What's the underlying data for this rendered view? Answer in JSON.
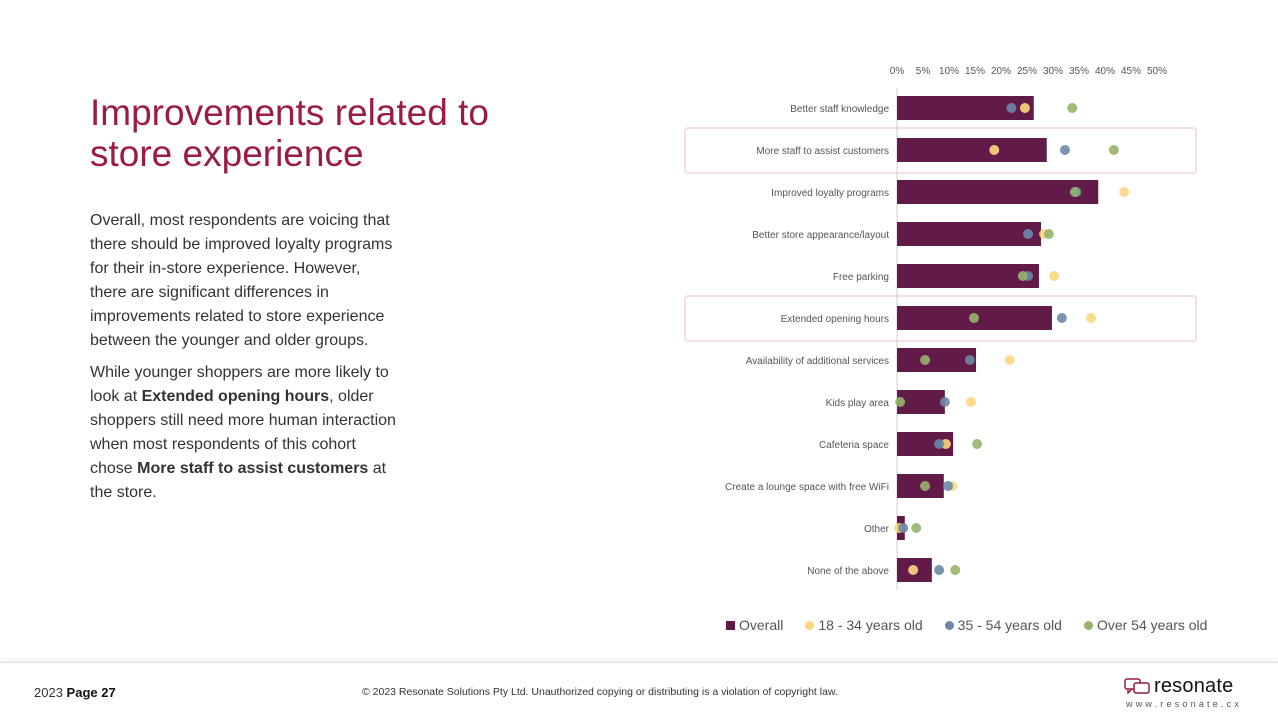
{
  "title": "Improvements related to store experience",
  "paragraph1": "Overall, most respondents are voicing that there should be improved loyalty programs for their in-store experience. However, there are significant differences in improvements related to store experience between the younger and older groups.",
  "paragraph2": {
    "t1": "While younger shoppers are more likely to look at ",
    "b1": "Extended opening hours",
    "t2": ", older shoppers still need more human interaction when most respondents of this cohort chose ",
    "b2": "More staff to assist customers",
    "t3": " at the store."
  },
  "footer": {
    "year": "2023",
    "page_label": "Page 27",
    "copyright": "© 2023 Resonate Solutions Pty Ltd. Unauthorized copying or distributing is a violation of copyright law.",
    "logo_text": "resonate",
    "logo_url": "www.resonate.cx"
  },
  "chart_data": {
    "type": "bar",
    "orientation": "horizontal",
    "xlim": [
      0,
      50
    ],
    "x_ticks": [
      "0%",
      "5%",
      "10%",
      "15%",
      "20%",
      "25%",
      "30%",
      "35%",
      "40%",
      "45%",
      "50%"
    ],
    "axis_position": "top",
    "grid": false,
    "legend_position": "bottom",
    "categories": [
      "Better staff knowledge",
      "More staff to assist customers",
      "Improved loyalty programs",
      "Better store appearance/layout",
      "Free parking",
      "Extended opening hours",
      "Availability of additional services",
      "Kids play area",
      "Cafeteria space",
      "Create a lounge space with free WiFi",
      "Other",
      "None of the above"
    ],
    "highlighted": [
      "More staff to assist customers",
      "Extended opening hours"
    ],
    "series": [
      {
        "name": "Overall",
        "mark": "bar",
        "color": "#621a48",
        "values": [
          26.3,
          28.8,
          38.7,
          27.7,
          27.3,
          29.8,
          15.2,
          9.2,
          10.8,
          9.0,
          1.5,
          6.7
        ]
      },
      {
        "name": "18 - 34 years old",
        "mark": "dot",
        "color": "#fcd77f",
        "values": [
          24.6,
          18.7,
          43.7,
          28.3,
          30.2,
          37.3,
          21.7,
          14.2,
          9.4,
          10.6,
          0.4,
          3.1
        ]
      },
      {
        "name": "35 - 54 years old",
        "mark": "dot",
        "color": "#6b88aa",
        "values": [
          22.0,
          32.3,
          34.5,
          25.2,
          25.2,
          31.7,
          14.0,
          9.2,
          8.1,
          9.8,
          1.2,
          8.1
        ]
      },
      {
        "name": "Over 54 years old",
        "mark": "dot",
        "color": "#96b46c",
        "values": [
          33.7,
          41.7,
          34.2,
          29.2,
          24.2,
          14.8,
          5.4,
          0.6,
          15.4,
          5.4,
          3.7,
          11.2
        ]
      }
    ]
  }
}
